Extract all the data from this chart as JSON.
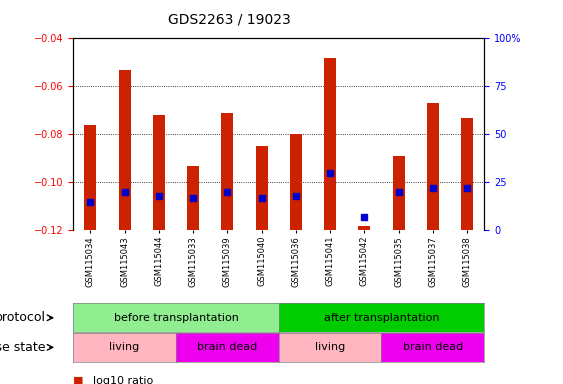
{
  "title": "GDS2263 / 19023",
  "samples": [
    "GSM115034",
    "GSM115043",
    "GSM115044",
    "GSM115033",
    "GSM115039",
    "GSM115040",
    "GSM115036",
    "GSM115041",
    "GSM115042",
    "GSM115035",
    "GSM115037",
    "GSM115038"
  ],
  "log10_ratio": [
    -0.076,
    -0.053,
    -0.072,
    -0.093,
    -0.071,
    -0.085,
    -0.08,
    -0.048,
    -0.118,
    -0.089,
    -0.067,
    -0.073
  ],
  "percentile_rank": [
    15,
    20,
    18,
    17,
    20,
    17,
    18,
    30,
    7,
    20,
    22,
    22
  ],
  "ylim_left": [
    -0.12,
    -0.04
  ],
  "ylim_right": [
    0,
    100
  ],
  "yticks_left": [
    -0.12,
    -0.1,
    -0.08,
    -0.06,
    -0.04
  ],
  "yticks_right": [
    0,
    25,
    50,
    75,
    100
  ],
  "protocol_groups": [
    {
      "label": "before transplantation",
      "start": 0,
      "end": 5,
      "color": "#90EE90"
    },
    {
      "label": "after transplantation",
      "start": 6,
      "end": 11,
      "color": "#00CC00"
    }
  ],
  "disease_groups": [
    {
      "label": "living",
      "start": 0,
      "end": 2,
      "color": "#FFB6C1"
    },
    {
      "label": "brain dead",
      "start": 3,
      "end": 5,
      "color": "#EE00EE"
    },
    {
      "label": "living",
      "start": 6,
      "end": 8,
      "color": "#FFB6C1"
    },
    {
      "label": "brain dead",
      "start": 9,
      "end": 11,
      "color": "#EE00EE"
    }
  ],
  "bar_color": "#CC2200",
  "dot_color": "#0000CC",
  "background_color": "#FFFFFF",
  "title_fontsize": 10,
  "tick_fontsize": 7,
  "label_fontsize": 9,
  "legend_fontsize": 8,
  "bar_width": 0.35
}
